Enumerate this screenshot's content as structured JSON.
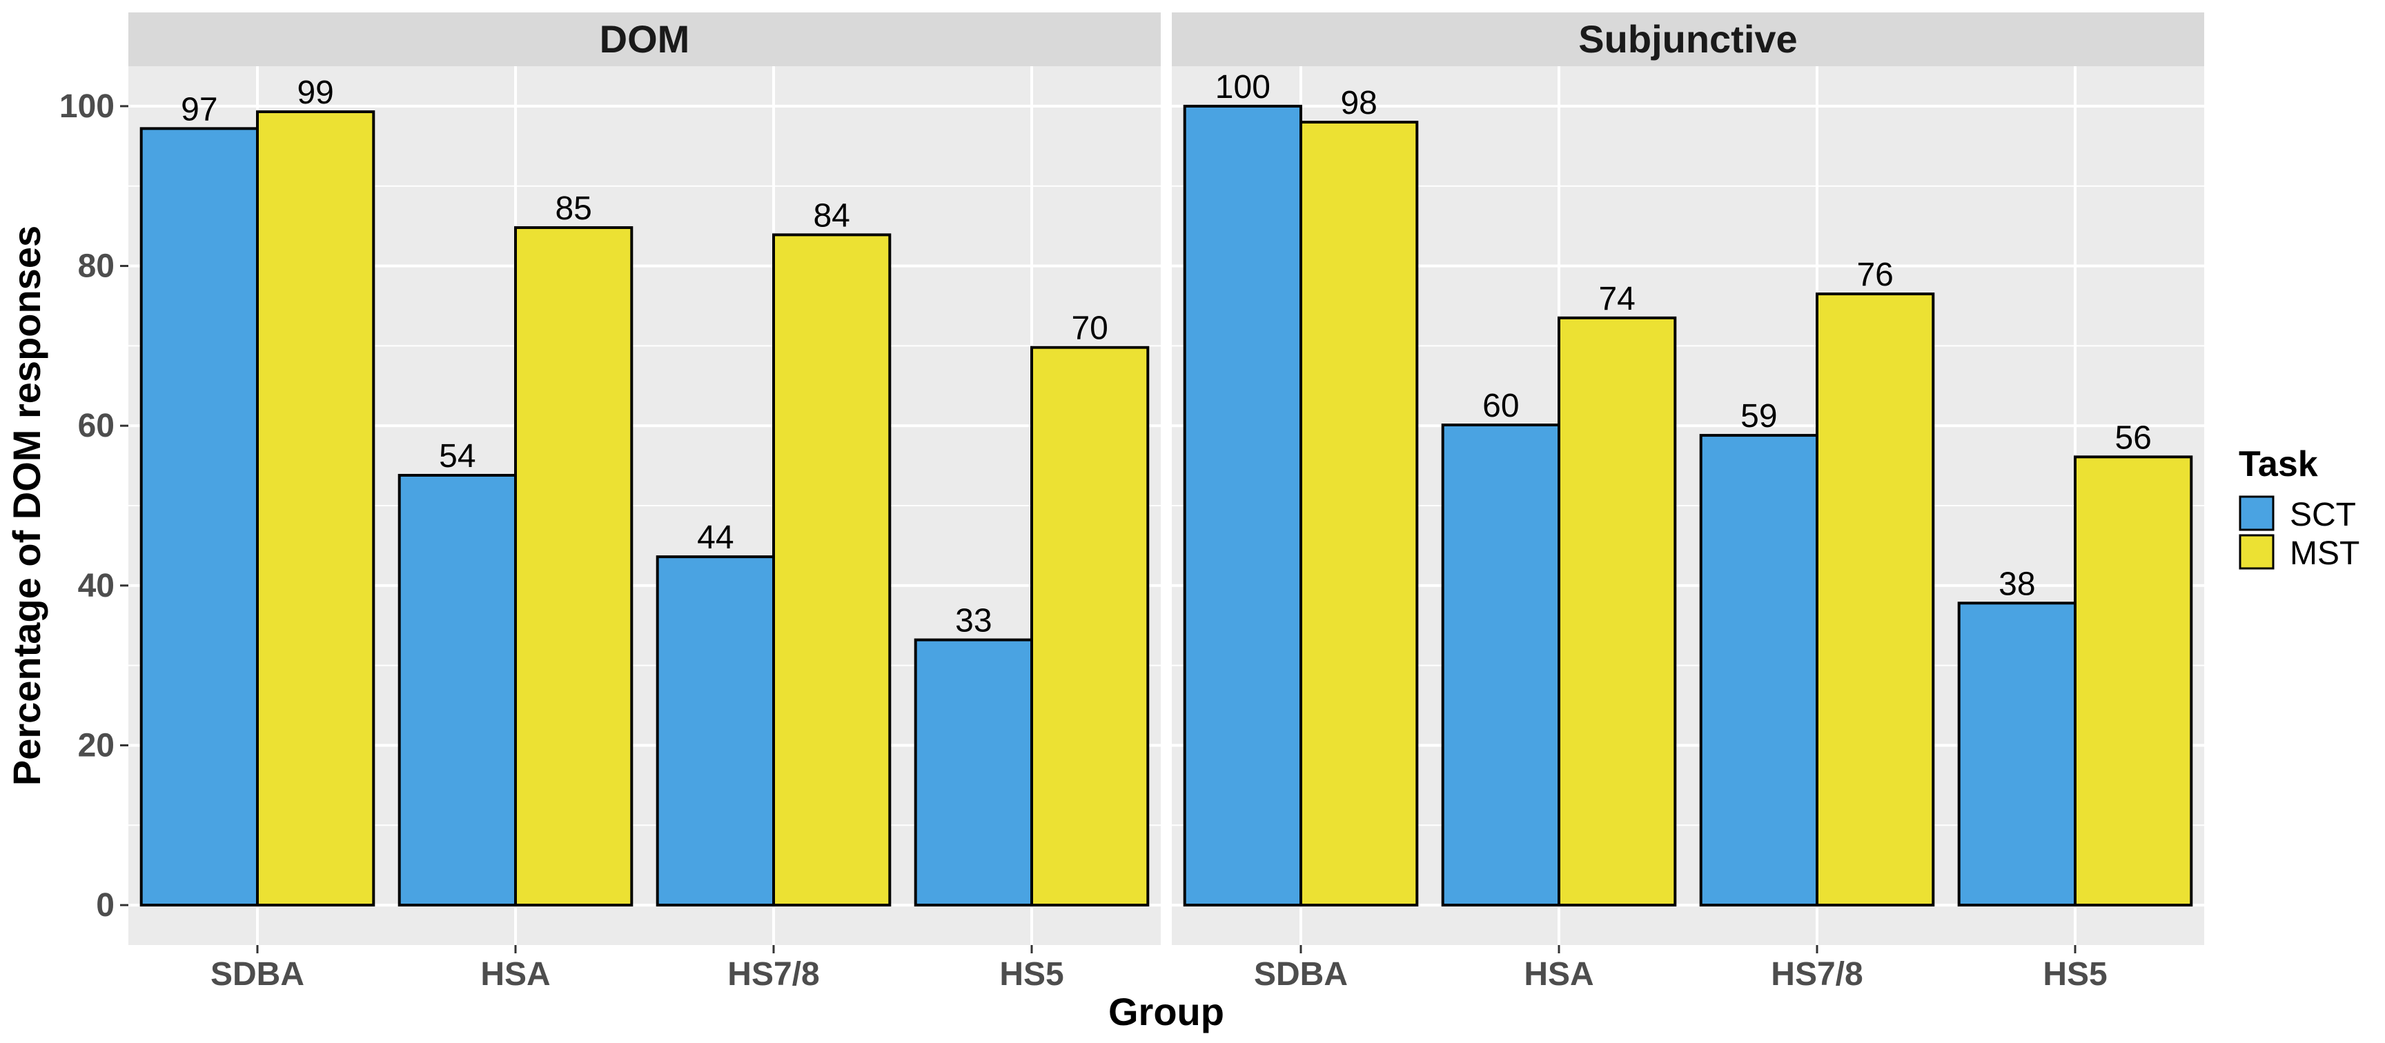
{
  "chart_data": {
    "type": "bar",
    "xlabel": "Group",
    "ylabel": "Percentage of DOM responses",
    "ylim": [
      -5,
      105
    ],
    "yticks": [
      0,
      20,
      40,
      60,
      80,
      100
    ],
    "grid": true,
    "legend": {
      "title": "Task",
      "placement": "right"
    },
    "categories": [
      "SDBA",
      "HSA",
      "HS7/8",
      "HS5"
    ],
    "series_defs": [
      {
        "name": "SCT",
        "color": "#4aa3e2"
      },
      {
        "name": "MST",
        "color": "#ece133"
      }
    ],
    "panels": [
      {
        "title": "DOM",
        "series": [
          {
            "name": "SCT",
            "values": [
              97.2,
              53.8,
              43.6,
              33.2
            ],
            "labels": [
              "97",
              "54",
              "44",
              "33"
            ]
          },
          {
            "name": "MST",
            "values": [
              99.3,
              84.8,
              83.9,
              69.8
            ],
            "labels": [
              "99",
              "85",
              "84",
              "70"
            ]
          }
        ]
      },
      {
        "title": "Subjunctive",
        "series": [
          {
            "name": "SCT",
            "values": [
              100,
              60.1,
              58.8,
              37.8
            ],
            "labels": [
              "100",
              "60",
              "59",
              "38"
            ]
          },
          {
            "name": "MST",
            "values": [
              98,
              73.5,
              76.5,
              56.1
            ],
            "labels": [
              "98",
              "74",
              "76",
              "56"
            ]
          }
        ]
      }
    ]
  }
}
